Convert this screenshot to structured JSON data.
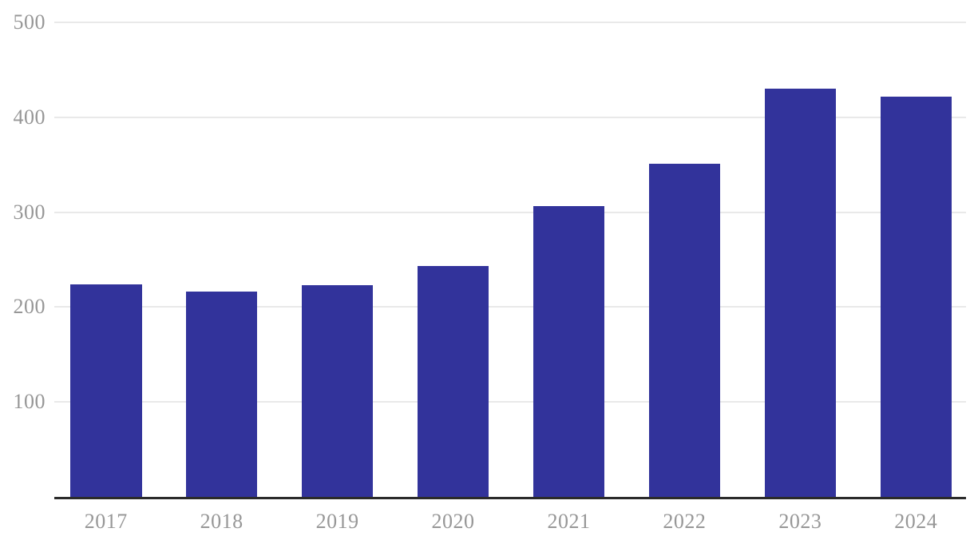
{
  "chart_data": {
    "type": "bar",
    "title": "",
    "xlabel": "",
    "ylabel": "",
    "categories": [
      "2017",
      "2018",
      "2019",
      "2020",
      "2021",
      "2022",
      "2023",
      "2024"
    ],
    "values": [
      224,
      216,
      223,
      243,
      306,
      351,
      430,
      422
    ],
    "ylim": [
      0,
      500
    ],
    "yticks": [
      100,
      200,
      300,
      400,
      500
    ],
    "grid": true,
    "legend": false,
    "colors": {
      "bar": "#32339B",
      "gridline": "#e9e9e9",
      "axis_line": "#2b2b2b",
      "tick_label": "#979797",
      "background": "#ffffff"
    }
  }
}
